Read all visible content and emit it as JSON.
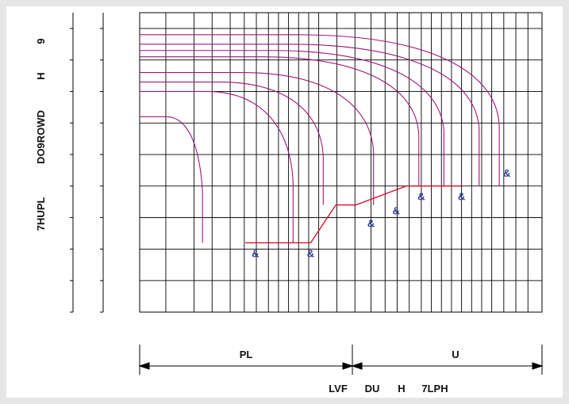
{
  "chart_data": {
    "type": "line",
    "title": "",
    "ylabel_tokens": [
      "7HUPL",
      "DO9ROWD",
      "H",
      "9"
    ],
    "xlabel_tokens": [
      "LVF",
      "DU",
      "H",
      "7LPH"
    ],
    "range_labels": {
      "left": "PL",
      "right": "U"
    },
    "marker_text": "&",
    "colors": {
      "curve": "#a0167a",
      "limit": "#e0001b",
      "grid": "#000000",
      "marker": "#2d3a8c"
    },
    "grid": true,
    "curves": [
      {
        "y_start": 6.2,
        "knee": 1.2,
        "y_end": 2.2
      },
      {
        "y_start": 7.0,
        "knee": 3.0,
        "y_end": 2.2
      },
      {
        "y_start": 7.3,
        "knee": 3.6,
        "y_end": 3.4
      },
      {
        "y_start": 7.6,
        "knee": 4.6,
        "y_end": 3.4
      },
      {
        "y_start": 8.1,
        "knee": 5.5,
        "y_end": 4.0
      },
      {
        "y_start": 8.3,
        "knee": 6.0,
        "y_end": 4.0
      },
      {
        "y_start": 8.5,
        "knee": 6.7,
        "y_end": 4.0
      },
      {
        "y_start": 8.8,
        "knee": 7.1,
        "y_end": 4.0
      }
    ],
    "limit_line": [
      [
        2.1,
        2.2
      ],
      [
        3.4,
        2.2
      ],
      [
        3.9,
        3.4
      ],
      [
        4.3,
        3.4
      ],
      [
        5.3,
        4.0
      ],
      [
        6.4,
        4.0
      ]
    ],
    "markers": [
      {
        "x": 2.3,
        "y": 1.75
      },
      {
        "x": 3.4,
        "y": 1.75
      },
      {
        "x": 4.6,
        "y": 2.7
      },
      {
        "x": 5.1,
        "y": 3.1
      },
      {
        "x": 5.6,
        "y": 3.55
      },
      {
        "x": 6.4,
        "y": 3.55
      },
      {
        "x": 7.3,
        "y": 4.3
      }
    ]
  }
}
